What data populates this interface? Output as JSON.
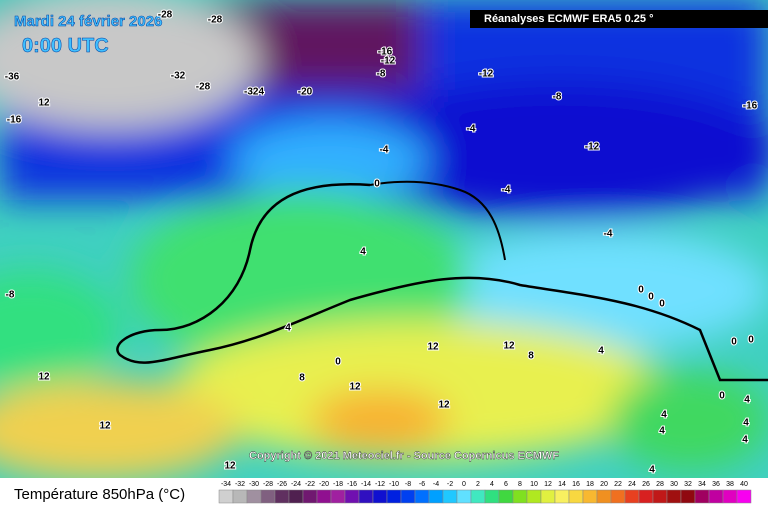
{
  "header": {
    "date": "Mardi 24 février 2026",
    "time": "0:00 UTC",
    "model": "Réanalyses ECMWF ERA5 0.25 °"
  },
  "copyright": "Copyright © 2021 Meteociel.fr - Source Copernicus ECMWF",
  "legend": {
    "title": "Température 850hPa (°C)",
    "ticks": [
      -34,
      -32,
      -30,
      -28,
      -26,
      -24,
      -22,
      -20,
      -18,
      -16,
      -14,
      -12,
      -10,
      -8,
      -6,
      -4,
      -2,
      0,
      2,
      4,
      6,
      8,
      10,
      12,
      14,
      16,
      18,
      20,
      22,
      24,
      26,
      28,
      30,
      32,
      34,
      36,
      38,
      40
    ],
    "colors": [
      "#d0d0d0",
      "#b8b8b8",
      "#a090a0",
      "#806080",
      "#603060",
      "#502050",
      "#701870",
      "#901090",
      "#a020a0",
      "#7010b0",
      "#3010c0",
      "#1010d0",
      "#0020e0",
      "#0040f0",
      "#0070ff",
      "#00a0ff",
      "#20c8ff",
      "#60e0ff",
      "#40e8c0",
      "#30e080",
      "#40d840",
      "#80e020",
      "#b0e820",
      "#e0f040",
      "#f8f060",
      "#f8d840",
      "#f8b830",
      "#f09020",
      "#f07020",
      "#e84020",
      "#d82020",
      "#c01818",
      "#a01010",
      "#900810",
      "#a00060",
      "#c000a0",
      "#e000c0",
      "#f800f0"
    ]
  },
  "contours": [
    "-28",
    "-28",
    "-36",
    "12",
    "-16",
    "-32",
    "-28",
    "-324",
    "-20",
    "-16",
    "-12",
    "-8",
    "-12",
    "-8",
    "-4",
    "-4",
    "-12",
    "-16",
    "0",
    "-4",
    "-4",
    "-8",
    "4",
    "0",
    "0",
    "0",
    "4",
    "0",
    "8",
    "12",
    "12",
    "12",
    "8",
    "4",
    "0",
    "0",
    "12",
    "12",
    "12",
    "12",
    "4",
    "4",
    "4",
    "4",
    "4",
    "4",
    "0"
  ]
}
